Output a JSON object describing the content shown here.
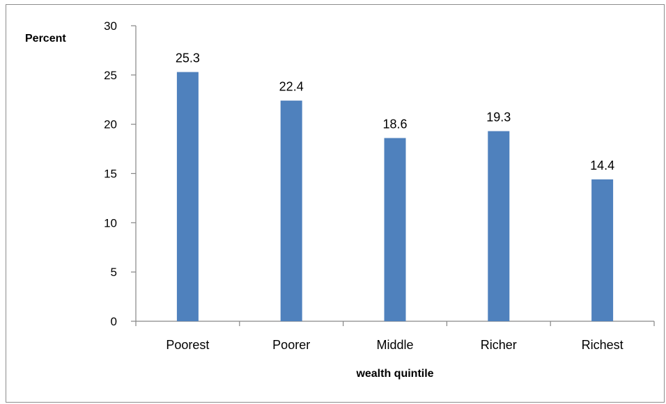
{
  "chart_data": {
    "type": "bar",
    "categories": [
      "Poorest",
      "Poorer",
      "Middle",
      "Richer",
      "Richest"
    ],
    "values": [
      25.3,
      22.4,
      18.6,
      19.3,
      14.4
    ],
    "data_labels": [
      "25.3",
      "22.4",
      "18.6",
      "19.3",
      "14.4"
    ],
    "title": "",
    "xlabel": "wealth quintile",
    "ylabel": "Percent",
    "ylim": [
      0,
      30
    ],
    "yticks": [
      0,
      5,
      10,
      15,
      20,
      25,
      30
    ],
    "grid": false,
    "legend": "none",
    "bar_color": "#4f81bd"
  }
}
